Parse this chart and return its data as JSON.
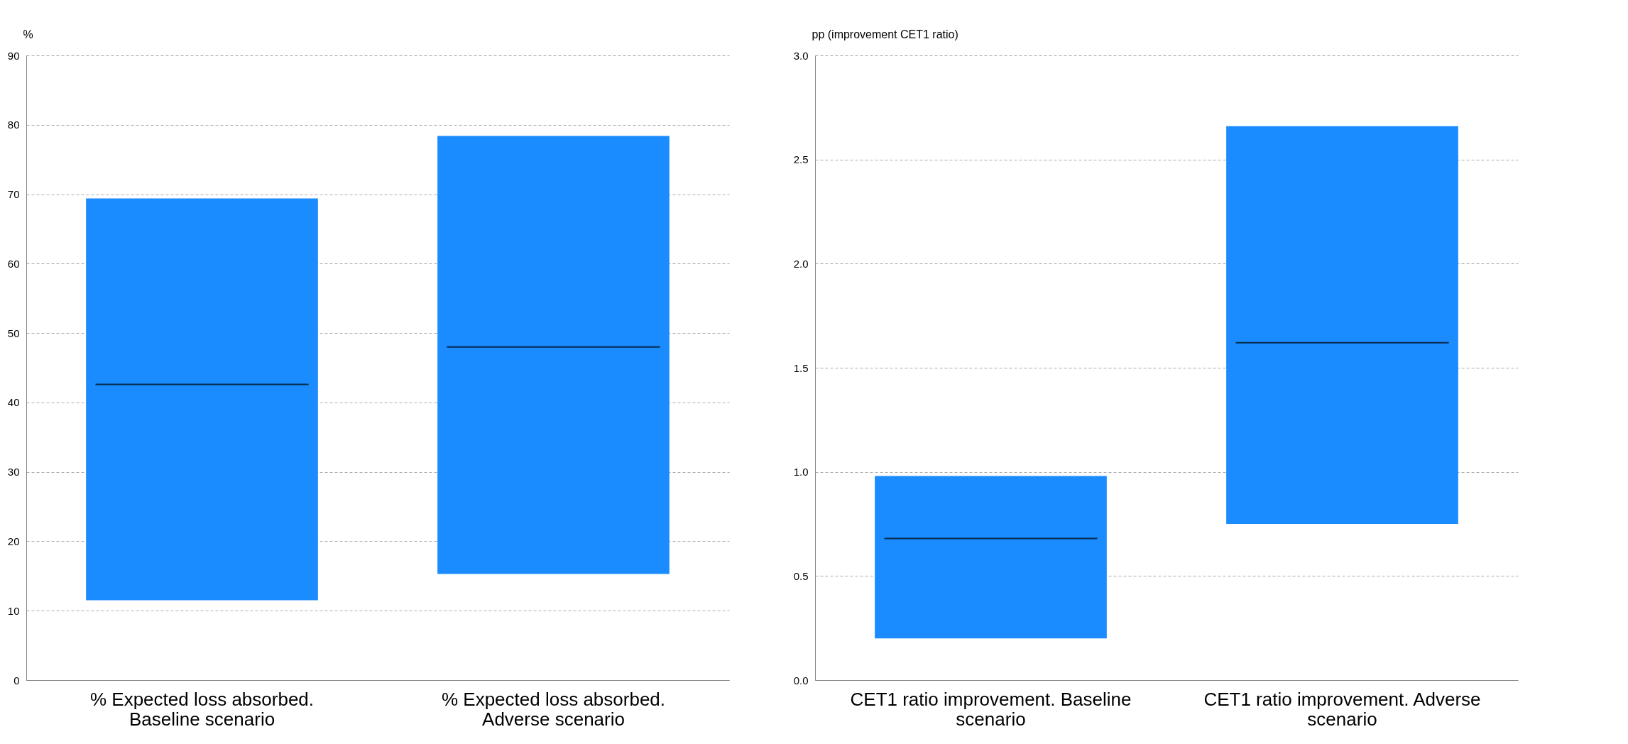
{
  "chart_data": [
    {
      "type": "box",
      "ylabel": "%",
      "categories": [
        "% Expected loss absorbed. Baseline scenario",
        "% Expected loss absorbed. Adverse scenario"
      ],
      "ylim": [
        0,
        90
      ],
      "yticks": [
        0,
        10,
        20,
        30,
        40,
        50,
        60,
        70,
        80,
        90
      ],
      "grid": "y",
      "series": [
        {
          "color": "#1a8cff",
          "boxes": [
            {
              "low": 11.5,
              "q1": 11.5,
              "median": 42.6,
              "q3": 69.4,
              "high": 69.4
            },
            {
              "low": 15.3,
              "q1": 15.3,
              "median": 48.0,
              "q3": 78.4,
              "high": 78.4
            }
          ]
        }
      ]
    },
    {
      "type": "box",
      "ylabel": "pp (improvement CET1 ratio)",
      "categories": [
        "CET1 ratio improvement. Baseline scenario",
        "CET1 ratio improvement. Adverse scenario"
      ],
      "ylim": [
        0,
        3
      ],
      "yticks": [
        {
          "value": 0,
          "label": "0.0"
        },
        {
          "value": 0.5,
          "label": "0.5"
        },
        {
          "value": 1,
          "label": "1.0"
        },
        {
          "value": 1.5,
          "label": "1.5"
        },
        {
          "value": 2,
          "label": "2.0"
        },
        {
          "value": 2.5,
          "label": "2.5"
        },
        {
          "value": 3,
          "label": "3.0"
        }
      ],
      "grid": "y",
      "series": [
        {
          "color": "#1a8cff",
          "boxes": [
            {
              "low": 0.2,
              "q1": 0.2,
              "median": 0.68,
              "q3": 0.98,
              "high": 0.98
            },
            {
              "low": 0.75,
              "q1": 0.75,
              "median": 1.62,
              "q3": 2.66,
              "high": 2.66
            }
          ]
        }
      ]
    }
  ]
}
